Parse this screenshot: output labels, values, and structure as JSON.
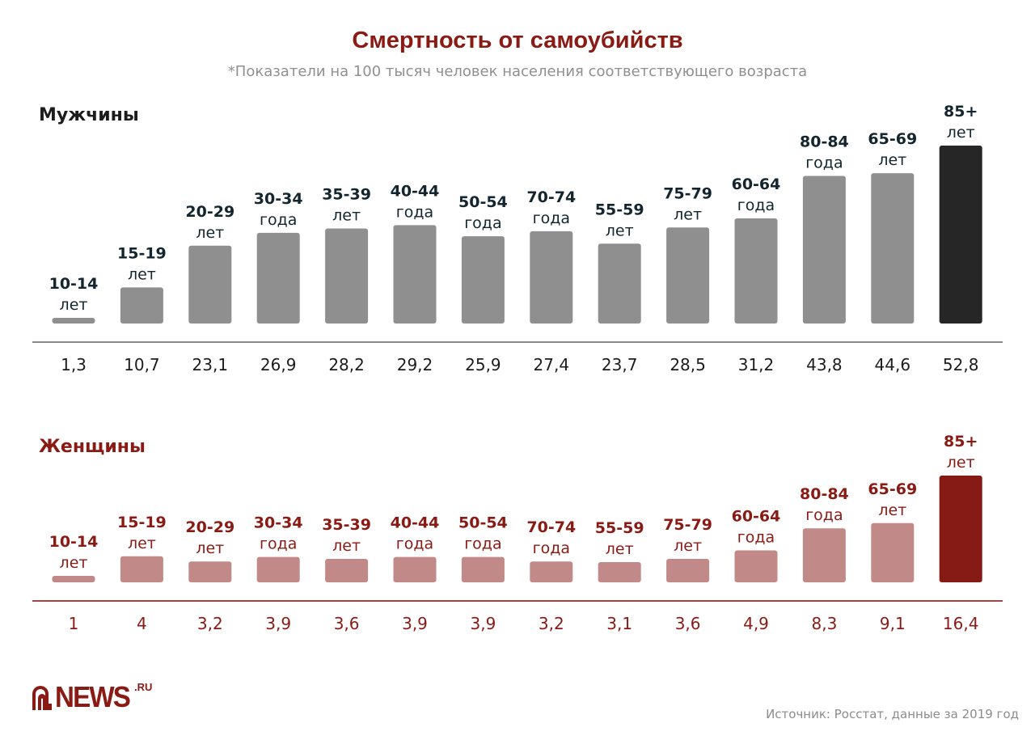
{
  "header": {
    "title": "Смертность от самоубийств",
    "subtitle": "*Показатели на 100 тысяч человек населения соответствующего возраста"
  },
  "footer": {
    "logo_text": "NEWS",
    "logo_suffix": ".RU",
    "source": "Источник: Росстат, данные за 2019 год"
  },
  "colors": {
    "title": "#8a1a14",
    "men_bar": "#8f8f8f",
    "men_highlight": "#262626",
    "men_text": "#13252e",
    "women_bar": "#c18a88",
    "women_highlight": "#861a15",
    "women_text": "#8a1a14",
    "men_axis": "#8a8a8a",
    "women_axis": "#9a4a46"
  },
  "chart_data": [
    {
      "type": "bar",
      "title": "Мужчины",
      "xlabel": "",
      "ylabel": "",
      "ylim": [
        0,
        52.8
      ],
      "grid": false,
      "categories": [
        {
          "range": "10-14",
          "unit": "лет"
        },
        {
          "range": "15-19",
          "unit": "лет"
        },
        {
          "range": "20-29",
          "unit": "лет"
        },
        {
          "range": "30-34",
          "unit": "года"
        },
        {
          "range": "35-39",
          "unit": "лет"
        },
        {
          "range": "40-44",
          "unit": "года"
        },
        {
          "range": "50-54",
          "unit": "года"
        },
        {
          "range": "70-74",
          "unit": "года"
        },
        {
          "range": "55-59",
          "unit": "лет"
        },
        {
          "range": "75-79",
          "unit": "лет"
        },
        {
          "range": "60-64",
          "unit": "года"
        },
        {
          "range": "80-84",
          "unit": "года"
        },
        {
          "range": "65-69",
          "unit": "лет"
        },
        {
          "range": "85+",
          "unit": "лет"
        }
      ],
      "values": [
        1.3,
        10.7,
        23.1,
        26.9,
        28.2,
        29.2,
        25.9,
        27.4,
        23.7,
        28.5,
        31.2,
        43.8,
        44.6,
        52.8
      ],
      "value_labels": [
        "1,3",
        "10,7",
        "23,1",
        "26,9",
        "28,2",
        "29,2",
        "25,9",
        "27,4",
        "23,7",
        "28,5",
        "31,2",
        "43,8",
        "44,6",
        "52,8"
      ],
      "highlight_index": 13
    },
    {
      "type": "bar",
      "title": "Женщины",
      "xlabel": "",
      "ylabel": "",
      "ylim": [
        0,
        16.4
      ],
      "grid": false,
      "categories": [
        {
          "range": "10-14",
          "unit": "лет"
        },
        {
          "range": "15-19",
          "unit": "лет"
        },
        {
          "range": "20-29",
          "unit": "лет"
        },
        {
          "range": "30-34",
          "unit": "года"
        },
        {
          "range": "35-39",
          "unit": "лет"
        },
        {
          "range": "40-44",
          "unit": "года"
        },
        {
          "range": "50-54",
          "unit": "года"
        },
        {
          "range": "70-74",
          "unit": "года"
        },
        {
          "range": "55-59",
          "unit": "лет"
        },
        {
          "range": "75-79",
          "unit": "лет"
        },
        {
          "range": "60-64",
          "unit": "года"
        },
        {
          "range": "80-84",
          "unit": "года"
        },
        {
          "range": "65-69",
          "unit": "лет"
        },
        {
          "range": "85+",
          "unit": "лет"
        }
      ],
      "values": [
        1,
        4,
        3.2,
        3.9,
        3.6,
        3.9,
        3.9,
        3.2,
        3.1,
        3.6,
        4.9,
        8.3,
        9.1,
        16.4
      ],
      "value_labels": [
        "1",
        "4",
        "3,2",
        "3,9",
        "3,6",
        "3,9",
        "3,9",
        "3,2",
        "3,1",
        "3,6",
        "4,9",
        "8,3",
        "9,1",
        "16,4"
      ],
      "highlight_index": 13
    }
  ]
}
